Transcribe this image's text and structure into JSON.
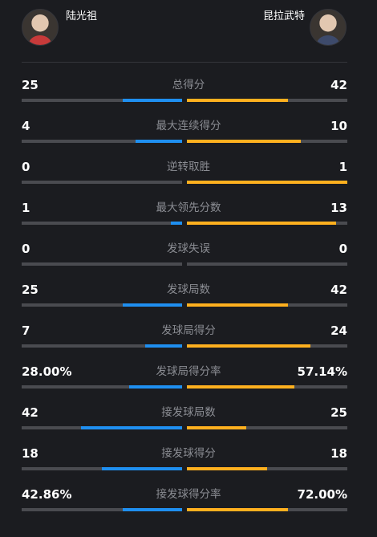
{
  "players": {
    "left": {
      "name": "陆光祖",
      "avatar_icon": "player-avatar-icon"
    },
    "right": {
      "name": "昆拉武特",
      "avatar_icon": "player-avatar-icon"
    }
  },
  "colors": {
    "left_bar": "#1f8ff0",
    "right_bar": "#ffb01f",
    "track": "#4a4b50"
  },
  "stats": [
    {
      "label": "总得分",
      "left": "25",
      "right": "42",
      "left_share": 0.37,
      "right_share": 0.63
    },
    {
      "label": "最大连续得分",
      "left": "4",
      "right": "10",
      "left_share": 0.29,
      "right_share": 0.71
    },
    {
      "label": "逆转取胜",
      "left": "0",
      "right": "1",
      "left_share": 0.0,
      "right_share": 1.0
    },
    {
      "label": "最大领先分数",
      "left": "1",
      "right": "13",
      "left_share": 0.07,
      "right_share": 0.93
    },
    {
      "label": "发球失误",
      "left": "0",
      "right": "0",
      "left_share": 0.0,
      "right_share": 0.0
    },
    {
      "label": "发球局数",
      "left": "25",
      "right": "42",
      "left_share": 0.37,
      "right_share": 0.63
    },
    {
      "label": "发球局得分",
      "left": "7",
      "right": "24",
      "left_share": 0.23,
      "right_share": 0.77
    },
    {
      "label": "发球局得分率",
      "left": "28.00%",
      "right": "57.14%",
      "left_share": 0.33,
      "right_share": 0.67
    },
    {
      "label": "接发球局数",
      "left": "42",
      "right": "25",
      "left_share": 0.63,
      "right_share": 0.37
    },
    {
      "label": "接发球得分",
      "left": "18",
      "right": "18",
      "left_share": 0.5,
      "right_share": 0.5
    },
    {
      "label": "接发球得分率",
      "left": "42.86%",
      "right": "72.00%",
      "left_share": 0.37,
      "right_share": 0.63
    }
  ]
}
